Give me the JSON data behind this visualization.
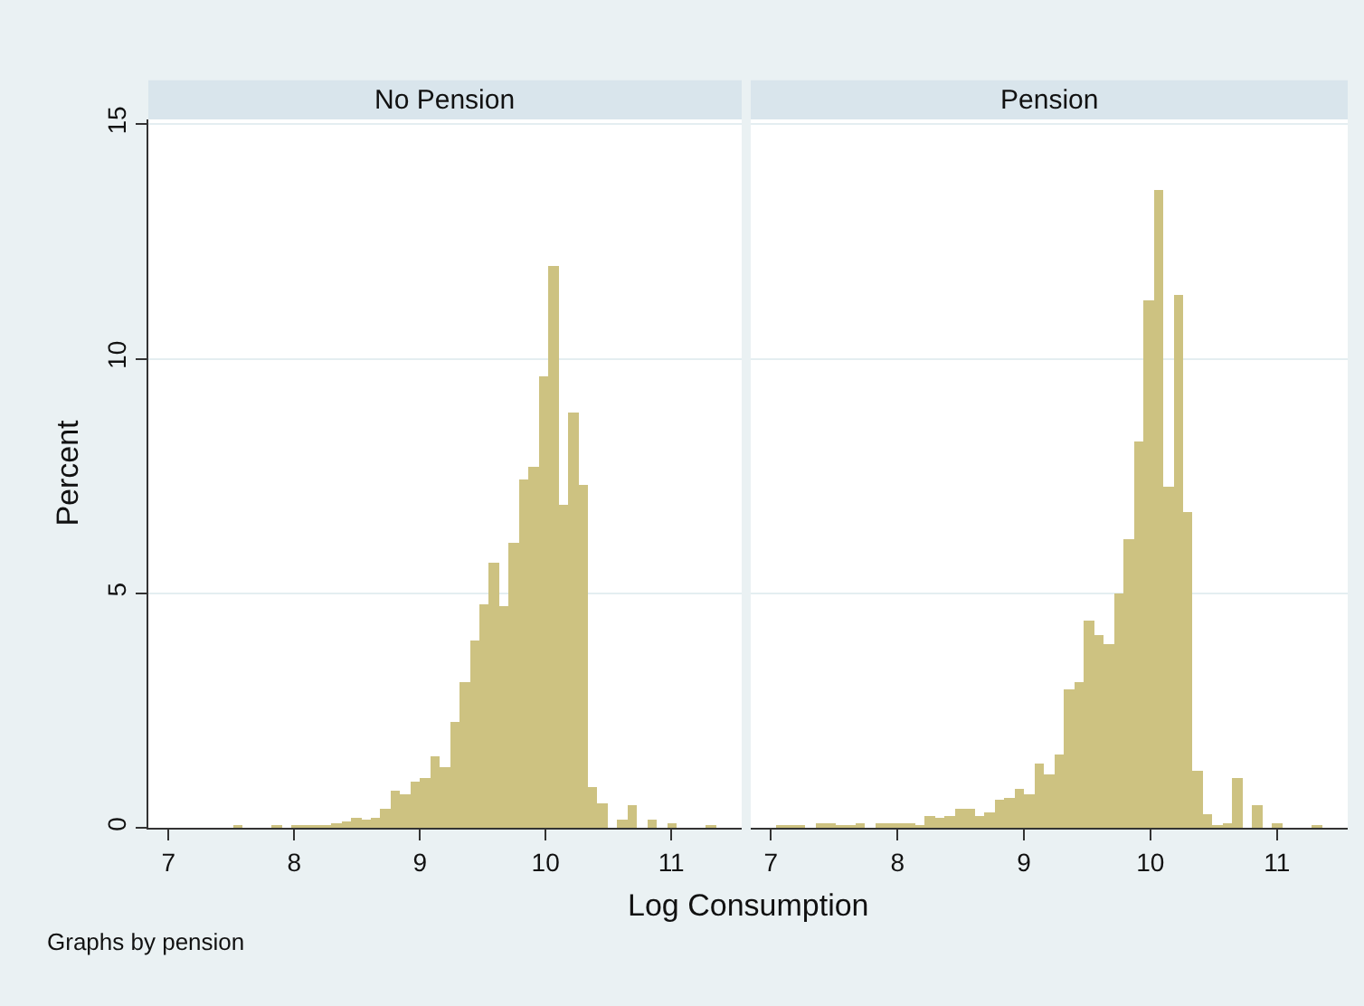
{
  "chart_data": [
    {
      "type": "histogram",
      "title": "No Pension",
      "ylabel": "Percent",
      "xlabel": "Log Consumption",
      "annotations": [
        "Graphs by pension"
      ],
      "color": "#cdc281",
      "bins": [
        7.04,
        7.1185,
        7.197,
        7.2755,
        7.354,
        7.4325,
        7.511,
        7.5895,
        7.668,
        7.7465,
        7.825,
        7.9035,
        7.982,
        8.0605,
        8.139,
        8.2175,
        8.296,
        8.3745,
        8.453,
        8.5315,
        8.61,
        8.6885,
        8.767,
        8.8455,
        8.924,
        9.0025,
        9.081,
        9.1595,
        9.238,
        9.3165,
        9.395,
        9.4735,
        9.552,
        9.6305,
        9.709,
        9.7875,
        9.866,
        9.9445,
        10.023,
        10.1015,
        10.18,
        10.2585,
        10.337,
        10.4155,
        10.494,
        10.5725,
        10.651,
        10.7295,
        10.808,
        10.8865,
        10.965,
        11.0435,
        11.122,
        11.2005,
        11.279,
        11.3575
      ],
      "values": [
        0,
        0,
        0,
        0,
        0,
        0,
        0.04,
        0,
        0,
        0,
        0.04,
        0,
        0.03,
        0.03,
        0.03,
        0.05,
        0.1,
        0.13,
        0.2,
        0.17,
        0.23,
        0.42,
        0.8,
        0.71,
        1.0,
        1.07,
        1.51,
        1.28,
        2.27,
        3.12,
        4.0,
        4.75,
        5.66,
        4.71,
        6.07,
        7.44,
        7.68,
        9.63,
        11.97,
        6.87,
        8.85,
        7.32,
        0.86,
        0.52,
        0,
        0.16,
        0.49,
        0,
        0.19,
        0,
        0.08,
        0,
        0,
        0,
        0.05
      ],
      "xlim": [
        6.84,
        11.56
      ],
      "ylim": [
        0,
        15.1
      ],
      "xticks": [
        7,
        8,
        9,
        10,
        11
      ],
      "yticks": [
        0,
        5,
        10,
        15
      ],
      "grid": "y"
    },
    {
      "type": "histogram",
      "title": "Pension",
      "color": "#cdc281",
      "tick_labels": "x",
      "bins": [
        7.04,
        7.1185,
        7.197,
        7.2755,
        7.354,
        7.4325,
        7.511,
        7.5895,
        7.668,
        7.7465,
        7.825,
        7.9035,
        7.982,
        8.0605,
        8.139,
        8.2175,
        8.296,
        8.3745,
        8.453,
        8.5315,
        8.61,
        8.6885,
        8.767,
        8.8455,
        8.924,
        9.0025,
        9.081,
        9.1595,
        9.238,
        9.3165,
        9.395,
        9.4735,
        9.552,
        9.6305,
        9.709,
        9.7875,
        9.866,
        9.9445,
        10.023,
        10.1015,
        10.18,
        10.2585,
        10.337,
        10.4155,
        10.494,
        10.5725,
        10.651,
        10.7295,
        10.808,
        10.8865,
        10.965,
        11.0435,
        11.122,
        11.2005,
        11.279,
        11.3575
      ],
      "values": [
        0.05,
        0.05,
        0.05,
        0,
        0.08,
        0.08,
        0.03,
        0.06,
        0.11,
        0,
        0.11,
        0.09,
        0.09,
        0.09,
        0.04,
        0.24,
        0.22,
        0.24,
        0.41,
        0.41,
        0.24,
        0.34,
        0.6,
        0.64,
        0.85,
        0.7,
        1.38,
        1.14,
        1.55,
        2.95,
        3.1,
        4.41,
        4.12,
        3.9,
        4.98,
        6.15,
        8.25,
        11.26,
        13.58,
        7.26,
        11.37,
        6.72,
        1.23,
        0.28,
        0.03,
        0.09,
        1.08,
        0,
        0.47,
        0,
        0.09,
        0,
        0,
        0,
        0.04
      ],
      "xlim": [
        6.84,
        11.56
      ],
      "ylim": [
        0,
        15.1
      ],
      "xticks": [
        7,
        8,
        9,
        10,
        11
      ],
      "yticks": [
        0,
        5,
        10,
        15
      ],
      "grid": "y"
    }
  ]
}
